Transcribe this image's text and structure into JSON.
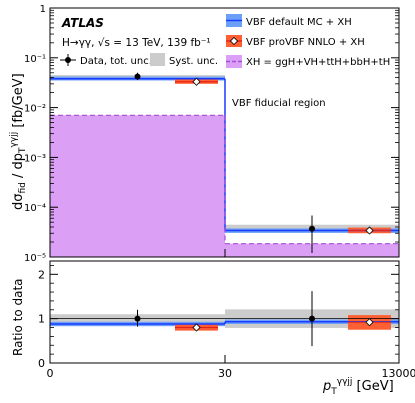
{
  "chart_data": {
    "type": "step-histogram-with-ratio",
    "experiment": "ATLAS",
    "process_text": "H→γγ, √s = 13 TeV, 139 fb⁻¹",
    "region_text": "VBF fiducial region",
    "ylabel_main": "dσfid / dp Tγγjj [fb/GeV]",
    "ylabel_ratio": "Ratio to data",
    "xlabel": "p Tγγjj [GeV]",
    "x_tick_labels": [
      "0",
      "30",
      "13000"
    ],
    "y_main_tick_labels": [
      "10⁻⁵",
      "10⁻⁴",
      "10⁻³",
      "10⁻²",
      "10⁻¹",
      "1"
    ],
    "y_ratio_tick_labels": [
      "0",
      "1",
      "2"
    ],
    "ylim_main": [
      1e-05,
      1
    ],
    "ylim_ratio": [
      0,
      2.3
    ],
    "y_scale_main": "log",
    "legend": {
      "vbf_default": "VBF default MC + XH",
      "vbf_provbf": "VBF proVBF NNLO + XH",
      "xh": "XH = ggH+VH+ttH+bbH+tH",
      "data": "Data, tot. unc.",
      "syst": "Syst. unc."
    },
    "bins": [
      {
        "data": {
          "value": 0.042,
          "err_lo": 0.036,
          "err_hi": 0.05
        },
        "syst_band": [
          0.037,
          0.045
        ],
        "vbf_default": {
          "value": 0.038,
          "band": [
            0.035,
            0.042
          ]
        },
        "vbf_provbf": {
          "value": 0.033,
          "band": [
            0.03,
            0.037
          ]
        },
        "xh": 0.007,
        "ratio": {
          "data": 1.0,
          "err_lo": 0.82,
          "err_hi": 1.2,
          "syst_band": [
            0.9,
            1.1
          ],
          "vbf_default": 0.88,
          "vbf_default_band": [
            0.83,
            0.93
          ],
          "vbf_provbf": 0.8,
          "vbf_provbf_band": [
            0.73,
            0.87
          ]
        }
      },
      {
        "data": {
          "value": 3.7e-05,
          "err_lo": 1.2e-05,
          "err_hi": 6.8e-05
        },
        "syst_band": [
          3.15e-05,
          4.45e-05
        ],
        "vbf_default": {
          "value": 3.4e-05,
          "band": [
            3.05e-05,
            3.75e-05
          ]
        },
        "vbf_provbf": {
          "value": 3.4e-05,
          "band": [
            3e-05,
            3.9e-05
          ]
        },
        "xh": 1.85e-05,
        "ratio": {
          "data": 1.0,
          "err_lo": 0.38,
          "err_hi": 1.62,
          "syst_band": [
            0.79,
            1.21
          ],
          "vbf_default": 0.93,
          "vbf_default_band": [
            0.88,
            0.98
          ],
          "vbf_provbf": 0.92,
          "vbf_provbf_band": [
            0.75,
            1.08
          ]
        }
      }
    ],
    "colors": {
      "vbf_default_line": "#1a3cff",
      "vbf_default_band": "#6c9ff7",
      "vbf_provbf_line": "#e2231a",
      "vbf_provbf_band": "#ff6033",
      "xh_fill": "#dba0f5",
      "xh_line": "#a24cd8",
      "syst_band": "#cccccc"
    }
  }
}
